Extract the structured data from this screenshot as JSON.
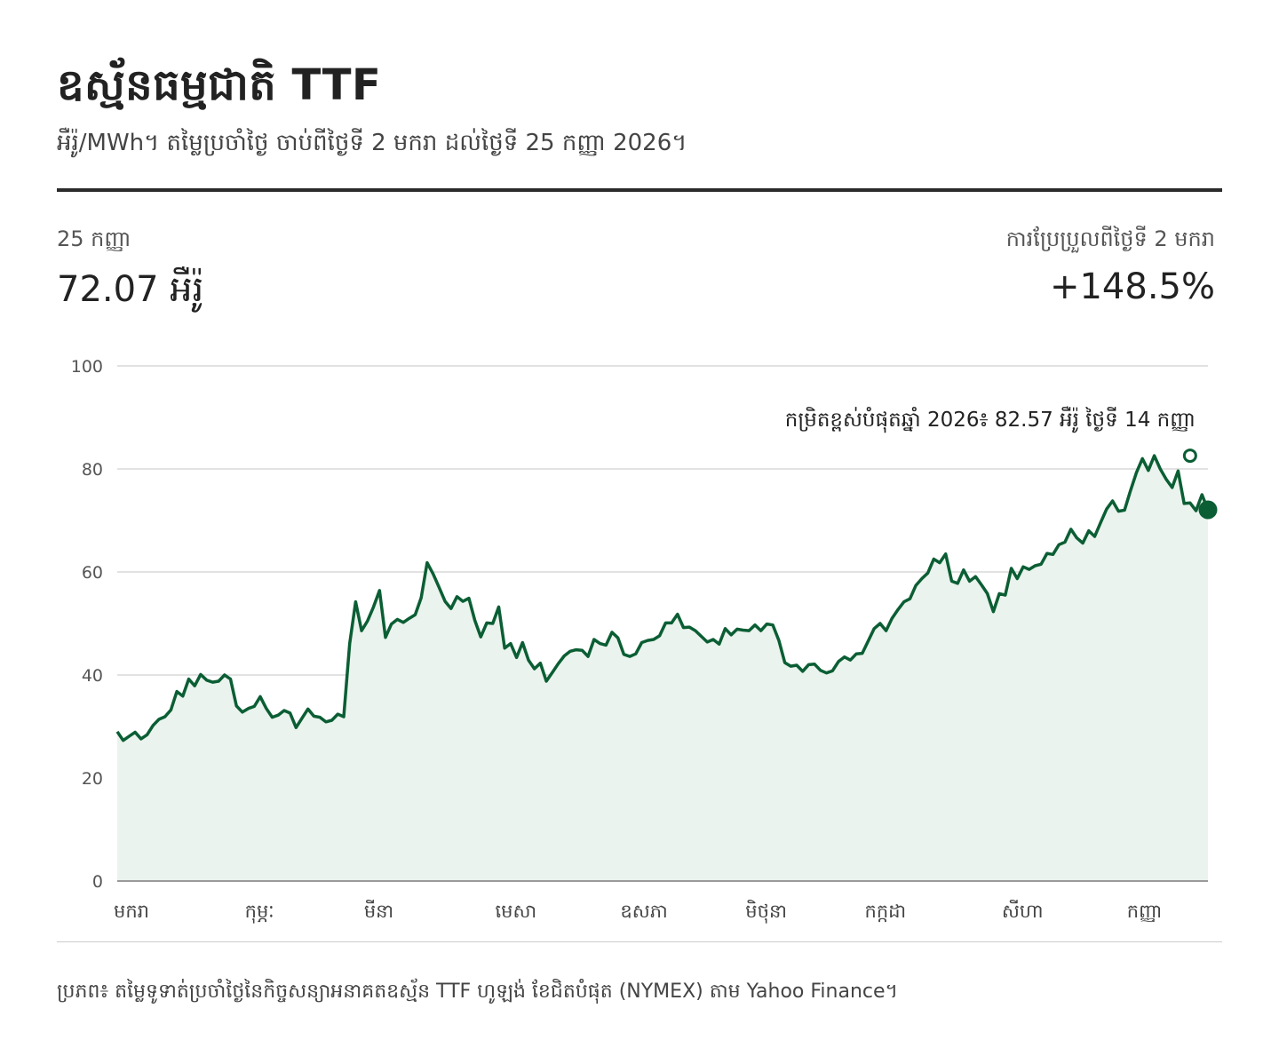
{
  "header": {
    "title": "ឧស្ម័នធម្មជាតិ TTF",
    "subtitle": "អឺរ៉ូ/MWh។ តម្លៃប្រចាំថ្ងៃ ចាប់ពីថ្ងៃទី 2 មករា ដល់ថ្ងៃទី 25 កញ្ញា 2026។"
  },
  "stats": {
    "latest_date": "25 កញ្ញា",
    "latest_value": "72.07 អឺរ៉ូ",
    "change_label": "ការប្រែប្រួលពីថ្ងៃទី 2 មករា",
    "change_value": "+148.5%"
  },
  "annotation": {
    "peak_text": "កម្រិតខ្ពស់បំផុតឆ្នាំ 2026៖ 82.57 អឺរ៉ូ ថ្ងៃទី 14 កញ្ញា"
  },
  "footer": {
    "source": "ប្រភព៖ តម្លៃទូទាត់ប្រចាំថ្ងៃនៃកិច្ចសន្យាអនាគតឧស្ម័ន TTF ហូឡង់ ខែជិតបំផុត (NYMEX) តាម Yahoo Finance។"
  },
  "colors": {
    "line": "#0b5e34",
    "area": "#eaf3ed",
    "grid": "#d9d9d9",
    "axis": "#999999"
  },
  "chart_data": {
    "type": "area",
    "ylim": [
      0,
      100
    ],
    "yticks": [
      0,
      20,
      40,
      60,
      80,
      100
    ],
    "month_labels": [
      "មករា",
      "កុម្ភៈ",
      "មីនា",
      "មេសា",
      "ឧសភា",
      "មិថុនា",
      "កក្កដា",
      "សីហា",
      "កញ្ញា"
    ],
    "month_start_index": [
      0,
      22,
      42,
      64,
      85,
      106,
      126,
      149,
      170
    ],
    "start_value": 29.0,
    "peak": {
      "index": 180,
      "value": 82.57
    },
    "end_value": 72.07,
    "values": [
      29.0,
      27.3,
      28.1,
      28.9,
      27.6,
      28.4,
      30.2,
      31.4,
      31.9,
      33.2,
      36.8,
      35.9,
      39.2,
      37.9,
      40.1,
      39.0,
      38.6,
      38.8,
      40.0,
      39.2,
      34.0,
      32.8,
      33.5,
      33.9,
      35.8,
      33.5,
      31.8,
      32.2,
      33.1,
      32.6,
      29.8,
      31.6,
      33.4,
      32.0,
      31.8,
      30.9,
      31.2,
      32.4,
      31.9,
      46.1,
      54.2,
      48.6,
      50.5,
      53.2,
      56.4,
      47.3,
      49.9,
      50.8,
      50.2,
      51.0,
      51.7,
      55.0,
      61.8,
      59.6,
      57.0,
      54.3,
      52.9,
      55.2,
      54.3,
      54.9,
      50.6,
      47.4,
      50.1,
      50.0,
      53.2,
      45.2,
      46.1,
      43.4,
      46.3,
      42.9,
      41.2,
      42.3,
      38.8,
      40.5,
      42.2,
      43.7,
      44.6,
      44.9,
      44.8,
      43.6,
      46.9,
      46.1,
      45.8,
      48.3,
      47.2,
      44.0,
      43.6,
      44.1,
      46.3,
      46.7,
      46.9,
      47.6,
      50.1,
      50.1,
      51.8,
      49.2,
      49.3,
      48.6,
      47.5,
      46.4,
      46.9,
      46.0,
      49.0,
      47.8,
      48.9,
      48.7,
      48.6,
      49.7,
      48.6,
      49.9,
      49.7,
      46.7,
      42.4,
      41.7,
      41.9,
      40.7,
      42.0,
      42.1,
      40.9,
      40.4,
      40.8,
      42.6,
      43.5,
      42.9,
      44.1,
      44.2,
      46.6,
      49.0,
      50.0,
      48.6,
      51.0,
      52.7,
      54.2,
      54.8,
      57.4,
      58.7,
      59.8,
      62.5,
      61.8,
      63.5,
      58.2,
      57.8,
      60.4,
      58.2,
      59.1,
      57.5,
      55.8,
      52.3,
      55.8,
      55.5,
      60.7,
      58.7,
      61.0,
      60.5,
      61.2,
      61.5,
      63.6,
      63.4,
      65.3,
      65.8,
      68.3,
      66.6,
      65.6,
      68.0,
      66.9,
      69.6,
      72.2,
      73.8,
      71.8,
      72.0,
      75.8,
      79.3,
      82.0,
      79.7,
      82.57,
      80.0,
      78.0,
      76.4,
      79.6,
      73.3,
      73.4,
      71.9,
      75.0,
      72.07
    ]
  }
}
